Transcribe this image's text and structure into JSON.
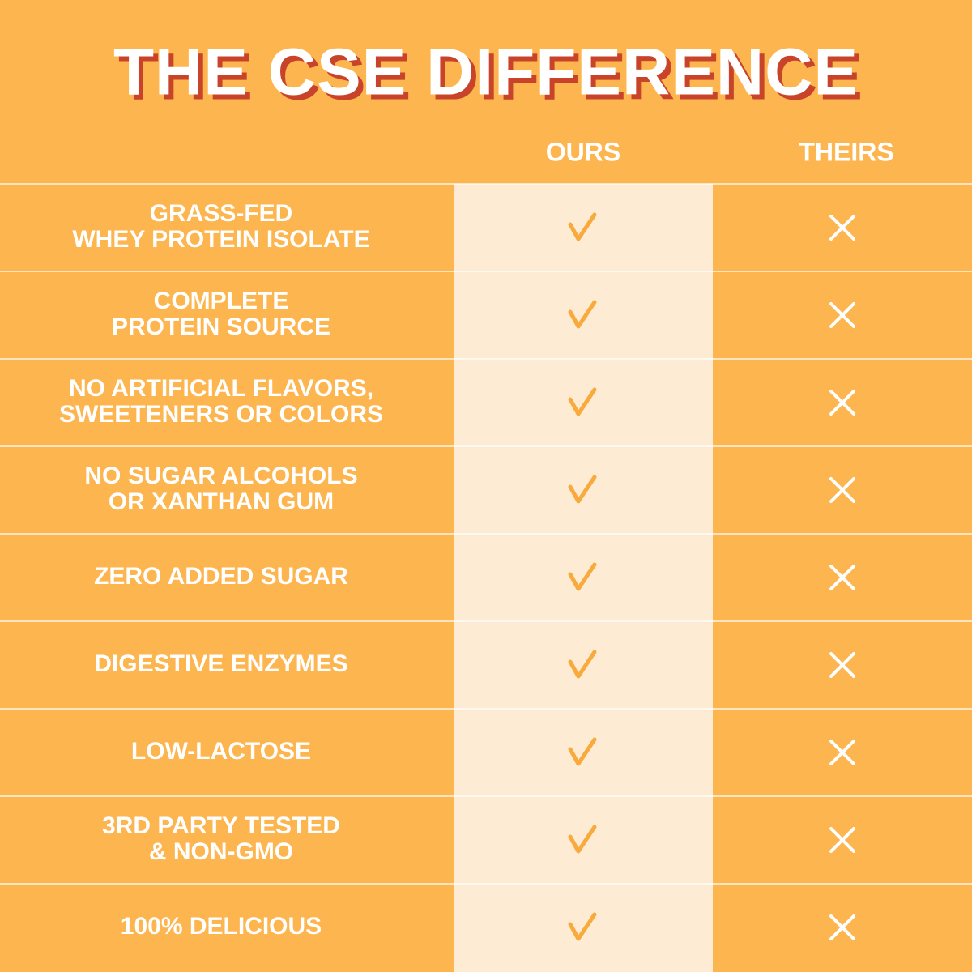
{
  "header": {
    "title": "THE CSE DIFFERENCE",
    "columns": [
      "OURS",
      "THEIRS"
    ]
  },
  "table": {
    "rows": [
      [
        "GRASS-FED",
        "WHEY PROTEIN ISOLATE"
      ],
      [
        "COMPLETE",
        "PROTEIN SOURCE"
      ],
      [
        "NO ARTIFICIAL FLAVORS,",
        "SWEETENERS OR COLORS"
      ],
      [
        "NO SUGAR ALCOHOLS",
        "OR XANTHAN GUM"
      ],
      [
        "ZERO ADDED SUGAR"
      ],
      [
        "DIGESTIVE ENZYMES"
      ],
      [
        "LOW-LACTOSE"
      ],
      [
        "3RD PARTY TESTED",
        "& NON-GMO"
      ],
      [
        "100% DELICIOUS"
      ]
    ]
  }
}
